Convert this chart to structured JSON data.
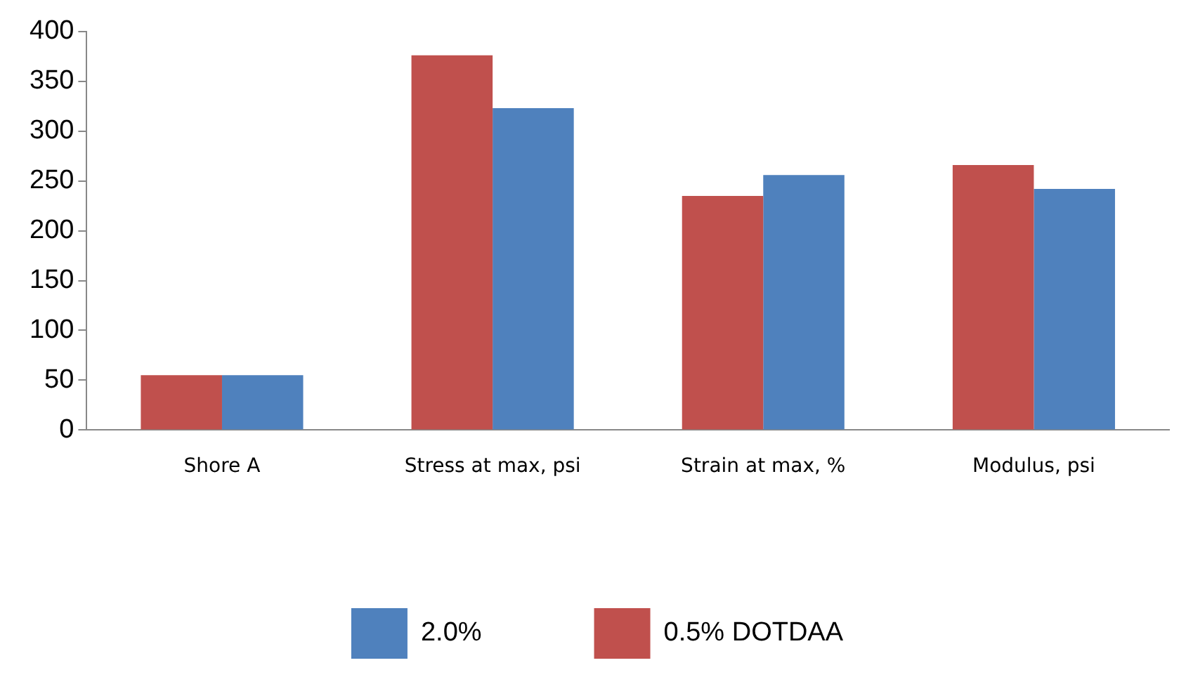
{
  "chart_data": {
    "type": "bar",
    "categories": [
      "Shore A",
      "Stress at max, psi",
      "Strain at max, %",
      "Modulus, psi"
    ],
    "series": [
      {
        "name": "0.5% DOTDAA",
        "color": "#c0504d",
        "values": [
          55,
          376,
          235,
          266
        ]
      },
      {
        "name": "2.0%",
        "color": "#4f81bd",
        "values": [
          55,
          323,
          256,
          242
        ]
      }
    ],
    "ylim": [
      0,
      400
    ],
    "yticks": [
      0,
      50,
      100,
      150,
      200,
      250,
      300,
      350,
      400
    ],
    "grid": false,
    "legend": "bottom"
  }
}
